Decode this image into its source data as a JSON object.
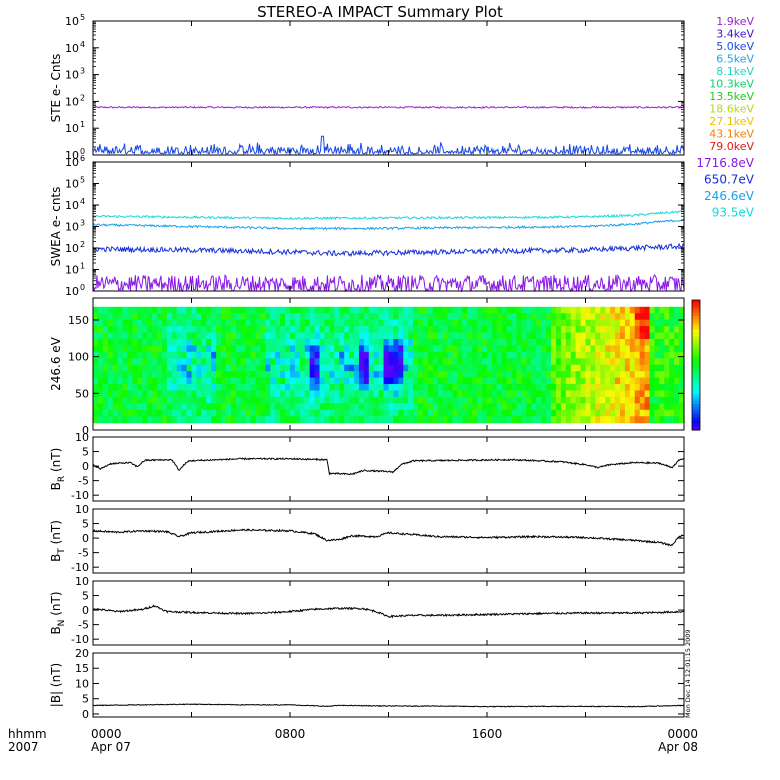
{
  "title": "STEREO-A IMPACT Summary Plot",
  "side_stamp": "Mon Dec 14 12:01:15 2009",
  "time_axis": {
    "label_line1": "hhmm",
    "label_line2": "2007",
    "ticks": [
      {
        "t": 0,
        "line1": "0000",
        "line2": "Apr 07"
      },
      {
        "t": 8,
        "line1": "0800",
        "line2": ""
      },
      {
        "t": 16,
        "line1": "1600",
        "line2": ""
      },
      {
        "t": 24,
        "line1": "0000",
        "line2": "Apr 08"
      }
    ]
  },
  "legend_ste": [
    {
      "label": "1.9keV",
      "color": "#9a1fd0"
    },
    {
      "label": "3.4keV",
      "color": "#4010d0"
    },
    {
      "label": "5.0keV",
      "color": "#1848e8"
    },
    {
      "label": "6.5keV",
      "color": "#18a8e8"
    },
    {
      "label": "8.1keV",
      "color": "#18d8c8"
    },
    {
      "label": "10.3keV",
      "color": "#10d070"
    },
    {
      "label": "13.5keV",
      "color": "#28c818"
    },
    {
      "label": "18.6keV",
      "color": "#b8d818"
    },
    {
      "label": "27.1keV",
      "color": "#f0c000"
    },
    {
      "label": "43.1keV",
      "color": "#f08000"
    },
    {
      "label": "79.0keV",
      "color": "#e01818"
    }
  ],
  "legend_swea": [
    {
      "label": "1716.8eV",
      "color": "#8a18e8"
    },
    {
      "label": "650.7eV",
      "color": "#1830d8"
    },
    {
      "label": "246.6eV",
      "color": "#18a0e8"
    },
    {
      "label": "93.5eV",
      "color": "#18d8d8"
    }
  ],
  "chart_data": [
    {
      "type": "line",
      "name": "ste",
      "ylabel": "STE e- Cnts",
      "yscale": "log",
      "ylim": [
        1,
        100000
      ],
      "yticks": [
        {
          "v": 1,
          "m": "0"
        },
        {
          "v": 10,
          "m": "1"
        },
        {
          "v": 100,
          "m": "2"
        },
        {
          "v": 1000,
          "m": "3"
        },
        {
          "v": 10000,
          "m": "4"
        },
        {
          "v": 100000,
          "m": "5"
        }
      ],
      "series": [
        {
          "color": "#9a1fd0",
          "level": 60,
          "noise": 0.03,
          "kind": "steady"
        },
        {
          "color": "#1848e8",
          "level": 1.1,
          "noise": 0.25,
          "kind": "spiky",
          "spike_t": 9.3,
          "spike_v": 5
        }
      ]
    },
    {
      "type": "line",
      "name": "swea",
      "ylabel": "SWEA e- cnts",
      "yscale": "log",
      "ylim": [
        1,
        1000000
      ],
      "yticks": [
        {
          "v": 1,
          "m": "0"
        },
        {
          "v": 10,
          "m": "1"
        },
        {
          "v": 100,
          "m": "2"
        },
        {
          "v": 1000,
          "m": "3"
        },
        {
          "v": 10000,
          "m": "4"
        },
        {
          "v": 100000,
          "m": "5"
        },
        {
          "v": 1000000,
          "m": "6"
        }
      ],
      "series": [
        {
          "color": "#18d8d8",
          "points": [
            [
              0,
              3000
            ],
            [
              4,
              2700
            ],
            [
              8,
              2400
            ],
            [
              12,
              2500
            ],
            [
              16,
              2600
            ],
            [
              20,
              2800
            ],
            [
              22,
              3300
            ],
            [
              24,
              5000
            ]
          ],
          "noise": 0.05
        },
        {
          "color": "#18a0e8",
          "points": [
            [
              0,
              1200
            ],
            [
              4,
              1000
            ],
            [
              8,
              800
            ],
            [
              12,
              820
            ],
            [
              16,
              900
            ],
            [
              20,
              1000
            ],
            [
              22,
              1300
            ],
            [
              24,
              2000
            ]
          ],
          "noise": 0.05
        },
        {
          "color": "#1830d8",
          "points": [
            [
              0,
              90
            ],
            [
              4,
              80
            ],
            [
              8,
              65
            ],
            [
              10,
              55
            ],
            [
              12,
              60
            ],
            [
              16,
              70
            ],
            [
              20,
              80
            ],
            [
              24,
              120
            ]
          ],
          "noise": 0.12
        },
        {
          "color": "#8a18e8",
          "points": [
            [
              0,
              2
            ],
            [
              24,
              2
            ]
          ],
          "noise": 0.6,
          "kind": "noisy"
        }
      ]
    },
    {
      "type": "heatmap",
      "name": "pad",
      "ylabel": "246.6 eV",
      "ylim": [
        0,
        180
      ],
      "yticks": [
        0,
        50,
        100,
        150
      ],
      "colorbar": "rainbow"
    },
    {
      "type": "line",
      "name": "br",
      "ylabel_main": "B",
      "ylabel_sub": "R",
      "ylabel_unit": " (nT)",
      "ylim": [
        -12,
        10
      ],
      "yticks": [
        -10,
        -5,
        0,
        5,
        10
      ],
      "color": "#000000",
      "points": [
        [
          0,
          0.5
        ],
        [
          0.3,
          -1
        ],
        [
          0.7,
          0.8
        ],
        [
          1.5,
          1.2
        ],
        [
          1.8,
          -0.2
        ],
        [
          2.1,
          2.0
        ],
        [
          3.2,
          2.2
        ],
        [
          3.5,
          -1.5
        ],
        [
          3.7,
          0.5
        ],
        [
          3.9,
          1.8
        ],
        [
          6,
          2.5
        ],
        [
          8,
          2.5
        ],
        [
          9.5,
          2.2
        ],
        [
          9.6,
          -2.5
        ],
        [
          10.5,
          -2.8
        ],
        [
          11,
          -1.5
        ],
        [
          12.2,
          -2.0
        ],
        [
          12.5,
          0.5
        ],
        [
          13,
          1.8
        ],
        [
          15,
          2.0
        ],
        [
          17,
          2.2
        ],
        [
          19,
          1.5
        ],
        [
          20,
          0.5
        ],
        [
          20.5,
          -0.5
        ],
        [
          21,
          0.5
        ],
        [
          22,
          1.2
        ],
        [
          23,
          1.0
        ],
        [
          23.5,
          -0.5
        ],
        [
          23.8,
          2.0
        ],
        [
          24,
          2.5
        ]
      ],
      "noise": 0.25
    },
    {
      "type": "line",
      "name": "bt",
      "ylabel_main": "B",
      "ylabel_sub": "T",
      "ylabel_unit": " (nT)",
      "ylim": [
        -12,
        10
      ],
      "yticks": [
        -10,
        -5,
        0,
        5,
        10
      ],
      "color": "#000000",
      "points": [
        [
          0,
          2.5
        ],
        [
          1,
          2.0
        ],
        [
          2,
          2.5
        ],
        [
          3,
          2.2
        ],
        [
          3.5,
          0.5
        ],
        [
          4,
          1.8
        ],
        [
          6,
          2.8
        ],
        [
          8,
          2.5
        ],
        [
          9,
          1.5
        ],
        [
          9.5,
          -0.8
        ],
        [
          10,
          -0.5
        ],
        [
          10.5,
          0.8
        ],
        [
          11.5,
          0.5
        ],
        [
          12,
          1.8
        ],
        [
          13,
          1.2
        ],
        [
          14,
          0.5
        ],
        [
          16,
          0.2
        ],
        [
          18,
          0.5
        ],
        [
          20,
          0.2
        ],
        [
          22,
          -0.8
        ],
        [
          23,
          -1.5
        ],
        [
          23.5,
          -2.5
        ],
        [
          23.8,
          0.5
        ],
        [
          24,
          1.0
        ]
      ],
      "noise": 0.3
    },
    {
      "type": "line",
      "name": "bn",
      "ylabel_main": "B",
      "ylabel_sub": "N",
      "ylabel_unit": " (nT)",
      "ylim": [
        -12,
        10
      ],
      "yticks": [
        -10,
        -5,
        0,
        5,
        10
      ],
      "color": "#000000",
      "points": [
        [
          0,
          0.5
        ],
        [
          1,
          -0.5
        ],
        [
          2,
          0.2
        ],
        [
          2.5,
          1.5
        ],
        [
          3,
          -0.5
        ],
        [
          4,
          -0.8
        ],
        [
          6,
          -1.2
        ],
        [
          7,
          -1.0
        ],
        [
          8,
          -0.5
        ],
        [
          9,
          0.3
        ],
        [
          10,
          0.6
        ],
        [
          11,
          0.5
        ],
        [
          11.5,
          -0.5
        ],
        [
          12,
          -2.2
        ],
        [
          13,
          -1.8
        ],
        [
          14,
          -1.8
        ],
        [
          16,
          -1.5
        ],
        [
          18,
          -1.2
        ],
        [
          20,
          -1.0
        ],
        [
          22,
          -1.0
        ],
        [
          23,
          -0.8
        ],
        [
          24,
          -0.5
        ]
      ],
      "noise": 0.3
    },
    {
      "type": "line",
      "name": "bmag",
      "ylabel": "|B| (nT)",
      "ylim": [
        -1,
        20
      ],
      "yticks": [
        0,
        5,
        10,
        15,
        20
      ],
      "color": "#000000",
      "points": [
        [
          0,
          2.8
        ],
        [
          2,
          3.0
        ],
        [
          4,
          3.2
        ],
        [
          6,
          3.0
        ],
        [
          8,
          3.0
        ],
        [
          9.5,
          2.5
        ],
        [
          10,
          2.8
        ],
        [
          12,
          2.6
        ],
        [
          14,
          2.6
        ],
        [
          16,
          2.4
        ],
        [
          18,
          2.5
        ],
        [
          20,
          2.5
        ],
        [
          22,
          2.4
        ],
        [
          24,
          2.8
        ]
      ],
      "noise": 0.12
    }
  ]
}
